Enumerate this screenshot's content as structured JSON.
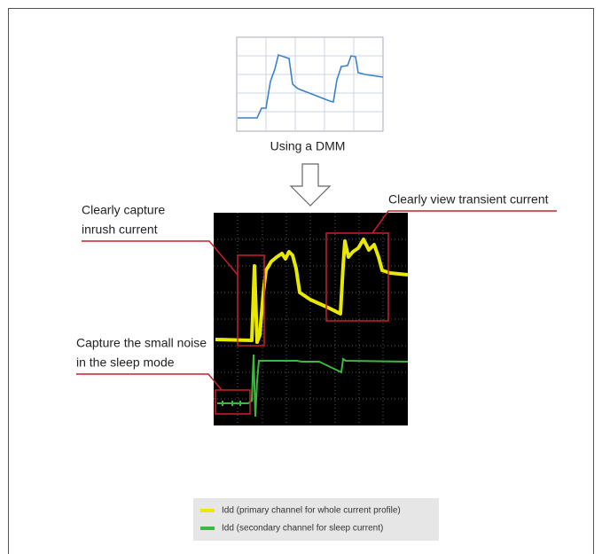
{
  "dmm_label": "Using a DMM",
  "callouts": [
    {
      "lines": [
        "Clearly capture",
        "inrush current"
      ]
    },
    {
      "lines": [
        "Clearly view transient current"
      ]
    },
    {
      "lines": [
        "Capture the small noise",
        "in the sleep mode"
      ]
    }
  ],
  "legend": [
    {
      "label": "Idd (primary channel for whole current profile)",
      "color": "#e8e800"
    },
    {
      "label": "Idd (secondary channel for sleep current)",
      "color": "#3cb83c"
    }
  ]
}
